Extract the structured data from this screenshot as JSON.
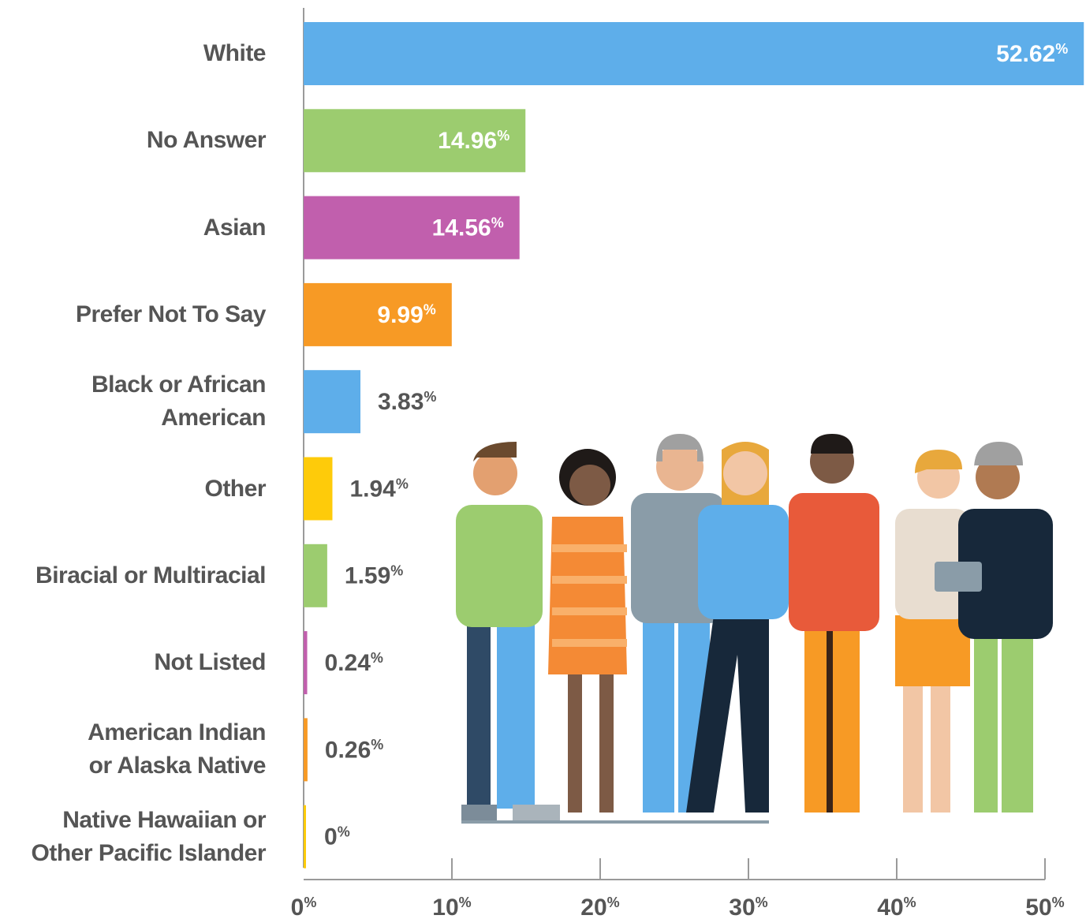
{
  "chart_data": {
    "type": "bar",
    "orientation": "horizontal",
    "categories": [
      "White",
      "No Answer",
      "Asian",
      "Prefer Not To Say",
      "Black or African\nAmerican",
      "Other",
      "Biracial or Multiracial",
      "Not Listed",
      "American Indian\nor Alaska Native",
      "Native Hawaiian or\nOther Pacific Islander"
    ],
    "values": [
      52.62,
      14.96,
      14.56,
      9.99,
      3.83,
      1.94,
      1.59,
      0.24,
      0.26,
      0
    ],
    "value_labels": [
      "52.62%",
      "14.96%",
      "14.56%",
      "9.99%",
      "3.83%",
      "1.94%",
      "1.59%",
      "0.24%",
      "0.26%",
      "0%"
    ],
    "colors": [
      "#5eaeea",
      "#9ccc6f",
      "#c15fad",
      "#f79a25",
      "#5eaeea",
      "#fecb0a",
      "#9ccc6f",
      "#c15fad",
      "#f79a25",
      "#fecb0a"
    ],
    "xlim": [
      0,
      50
    ],
    "xticks": [
      {
        "value": 0,
        "label": "0%"
      },
      {
        "value": 10,
        "label": "10%"
      },
      {
        "value": 20,
        "label": "20%"
      },
      {
        "value": 30,
        "label": "30%"
      },
      {
        "value": 40,
        "label": "40%"
      },
      {
        "value": 50,
        "label": "50%"
      }
    ]
  }
}
